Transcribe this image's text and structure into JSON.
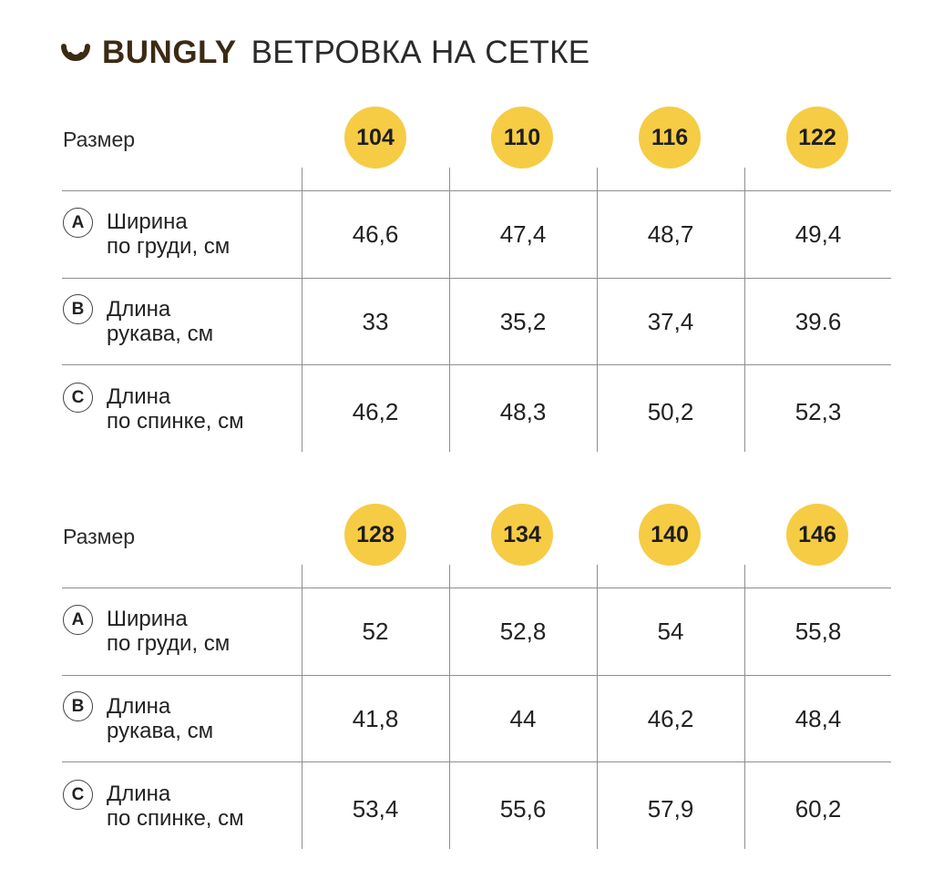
{
  "header": {
    "brand": "BUNGLY",
    "title": "ВЕТРОВКА НА СЕТКЕ",
    "logo_icon": "smile-cup-icon",
    "brand_color": "#3b2a14",
    "badge_color": "#f6cc45"
  },
  "tables": [
    {
      "size_label": "Размер",
      "sizes": [
        "104",
        "110",
        "116",
        "122"
      ],
      "rows": [
        {
          "letter": "A",
          "line1": "Ширина",
          "line2": "по груди, см",
          "values": [
            "46,6",
            "47,4",
            "48,7",
            "49,4"
          ]
        },
        {
          "letter": "B",
          "line1": "Длина",
          "line2": "рукава, см",
          "values": [
            "33",
            "35,2",
            "37,4",
            "39.6"
          ]
        },
        {
          "letter": "C",
          "line1": "Длина",
          "line2": "по спинке, см",
          "values": [
            "46,2",
            "48,3",
            "50,2",
            "52,3"
          ]
        }
      ]
    },
    {
      "size_label": "Размер",
      "sizes": [
        "128",
        "134",
        "140",
        "146"
      ],
      "rows": [
        {
          "letter": "A",
          "line1": "Ширина",
          "line2": "по груди, см",
          "values": [
            "52",
            "52,8",
            "54",
            "55,8"
          ]
        },
        {
          "letter": "B",
          "line1": "Длина",
          "line2": "рукава, см",
          "values": [
            "41,8",
            "44",
            "46,2",
            "48,4"
          ]
        },
        {
          "letter": "C",
          "line1": "Длина",
          "line2": "по спинке, см",
          "values": [
            "53,4",
            "55,6",
            "57,9",
            "60,2"
          ]
        }
      ]
    }
  ]
}
